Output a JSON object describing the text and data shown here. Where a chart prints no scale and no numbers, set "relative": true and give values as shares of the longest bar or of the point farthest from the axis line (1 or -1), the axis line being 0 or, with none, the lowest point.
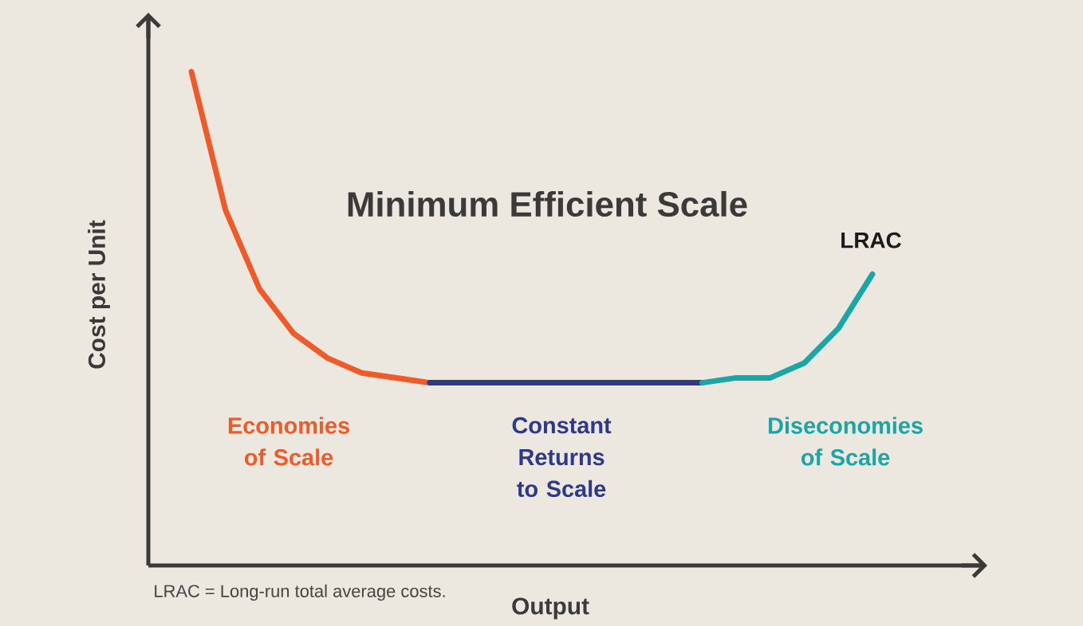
{
  "chart_data": {
    "type": "line",
    "relative": true,
    "title": "Minimum Efficient Scale",
    "xlabel": "Output",
    "ylabel": "Cost per Unit",
    "categories": [
      null,
      null,
      null,
      null,
      null,
      null,
      null,
      null,
      null,
      null,
      null,
      null,
      null,
      null,
      null,
      null,
      null,
      null,
      null,
      null,
      null
    ],
    "series": [
      {
        "name": "Economies of Scale",
        "color": "#f05a28",
        "values": [
          1.0,
          0.72,
          0.56,
          0.47,
          0.42,
          0.39,
          0.38,
          0.37,
          null,
          null,
          null,
          null,
          null,
          null,
          null,
          null,
          null,
          null,
          null,
          null,
          null
        ]
      },
      {
        "name": "Constant Returns to Scale",
        "color": "#2e3a87",
        "values": [
          null,
          null,
          null,
          null,
          null,
          null,
          null,
          0.37,
          0.37,
          0.37,
          0.37,
          0.37,
          0.37,
          0.37,
          0.37,
          0.37,
          null,
          null,
          null,
          null,
          null
        ]
      },
      {
        "name": "Diseconomies of Scale",
        "color": "#1aa6a6",
        "values": [
          null,
          null,
          null,
          null,
          null,
          null,
          null,
          null,
          null,
          null,
          null,
          null,
          null,
          null,
          null,
          0.37,
          0.38,
          0.38,
          0.41,
          0.48,
          0.59
        ]
      }
    ],
    "annotations": [
      "LRAC",
      "LRAC = Long-run total average costs."
    ]
  }
}
